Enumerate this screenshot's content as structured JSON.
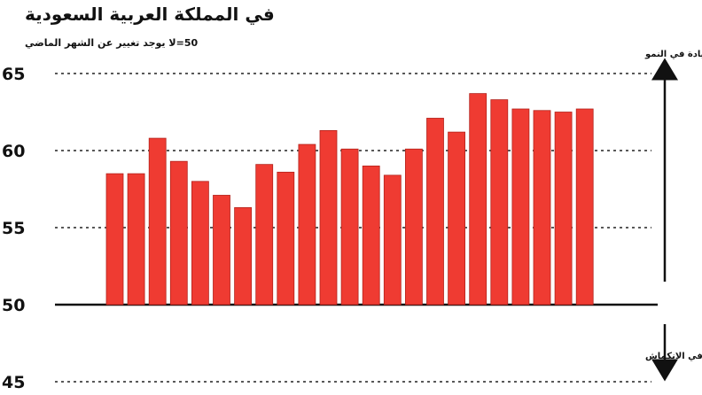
{
  "chart_data": {
    "type": "bar",
    "title": "في المملكة العربية السعودية",
    "subtitle": "50=لا يوجد تغيير عن الشهر الماضي",
    "annotations": {
      "upper": "معدل الزيادة في النمو",
      "lower": "معدل الهبوط في الانكماش"
    },
    "yticks": [
      65,
      60,
      55,
      50,
      45
    ],
    "ylim": [
      45,
      66
    ],
    "baseline": 50,
    "values": [
      58.5,
      58.5,
      60.8,
      59.3,
      58.0,
      57.1,
      56.3,
      59.1,
      58.6,
      60.4,
      61.3,
      60.1,
      59.0,
      58.4,
      60.1,
      62.1,
      61.2,
      63.7,
      63.3,
      62.7,
      62.6,
      62.5,
      62.7
    ],
    "bar_color": "#ef3b32",
    "grid": "dotted"
  }
}
